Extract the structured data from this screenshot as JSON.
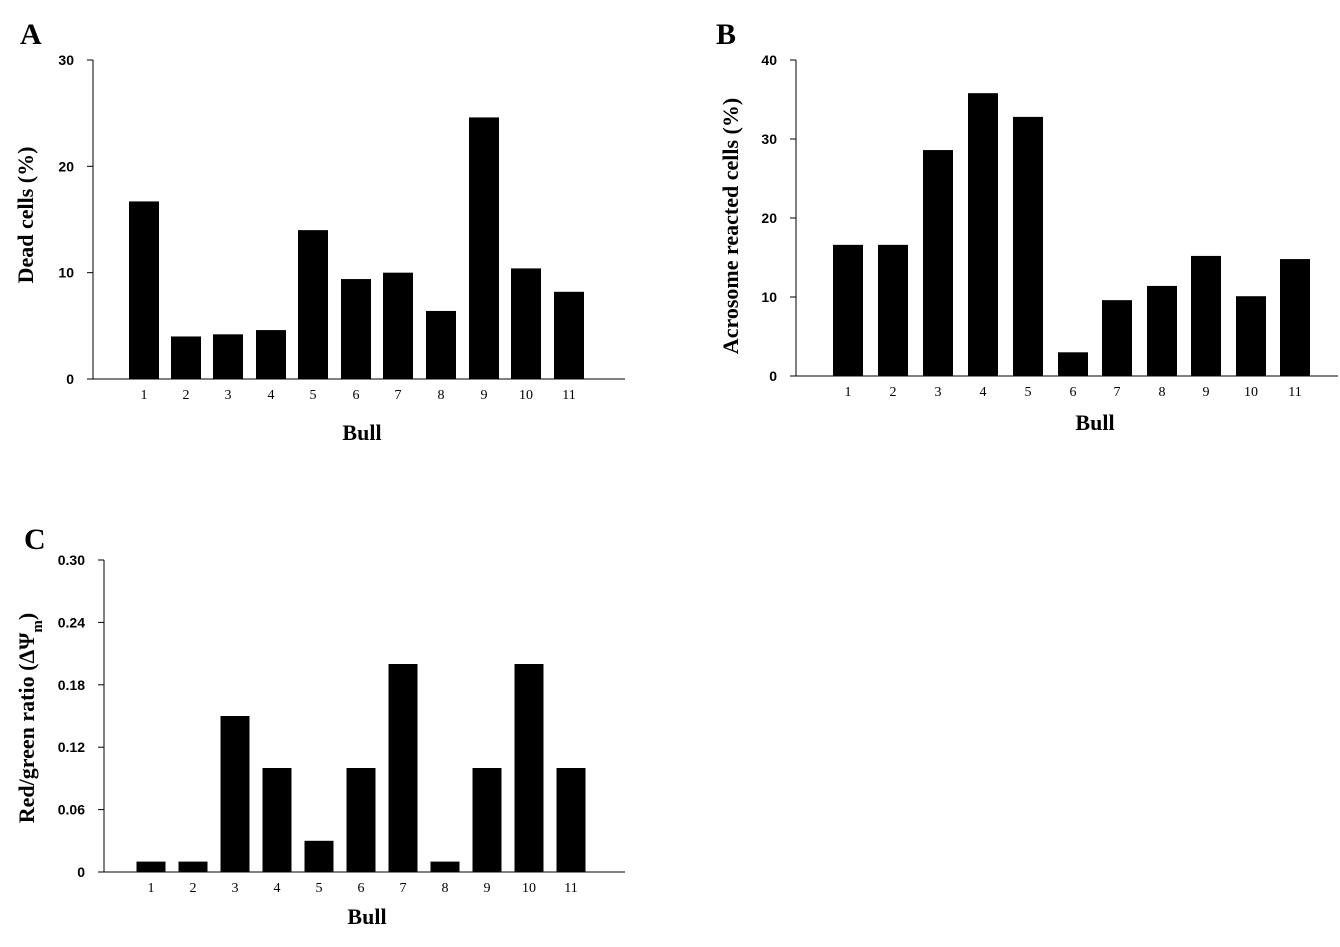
{
  "chart_data": [
    {
      "type": "bar",
      "panel_label": "A",
      "categories": [
        "1",
        "2",
        "3",
        "4",
        "5",
        "6",
        "7",
        "8",
        "9",
        "10",
        "11"
      ],
      "values": [
        16.7,
        4.0,
        4.2,
        4.6,
        14.0,
        9.4,
        10.0,
        6.4,
        24.6,
        10.4,
        8.2
      ],
      "xlabel": "Bull",
      "ylabel": "Dead cells (%)",
      "ylim": [
        0,
        30
      ],
      "yticks": [
        "0",
        "10",
        "20",
        "30"
      ],
      "grid": false
    },
    {
      "type": "bar",
      "panel_label": "B",
      "categories": [
        "1",
        "2",
        "3",
        "4",
        "5",
        "6",
        "7",
        "8",
        "9",
        "10",
        "11"
      ],
      "values": [
        16.6,
        16.6,
        28.6,
        35.8,
        32.8,
        3.0,
        9.6,
        11.4,
        15.2,
        10.1,
        14.8
      ],
      "xlabel": "Bull",
      "ylabel": "Acrosome reacted cells (%)",
      "ylim": [
        0,
        40
      ],
      "yticks": [
        "0",
        "10",
        "20",
        "30",
        "40"
      ],
      "grid": false
    },
    {
      "type": "bar",
      "panel_label": "C",
      "categories": [
        "1",
        "2",
        "3",
        "4",
        "5",
        "6",
        "7",
        "8",
        "9",
        "10",
        "11"
      ],
      "values": [
        0.01,
        0.01,
        0.15,
        0.1,
        0.03,
        0.1,
        0.2,
        0.01,
        0.1,
        0.2,
        0.1
      ],
      "xlabel": "Bull",
      "ylabel": "Red/green ratio (ΔΨ",
      "ylabel_subscript": "m",
      "ylabel_close": ")",
      "ylim": [
        0,
        0.3
      ],
      "yticks": [
        "0",
        "0.06",
        "0.12",
        "0.18",
        "0.24",
        "0.30"
      ],
      "grid": false
    }
  ]
}
